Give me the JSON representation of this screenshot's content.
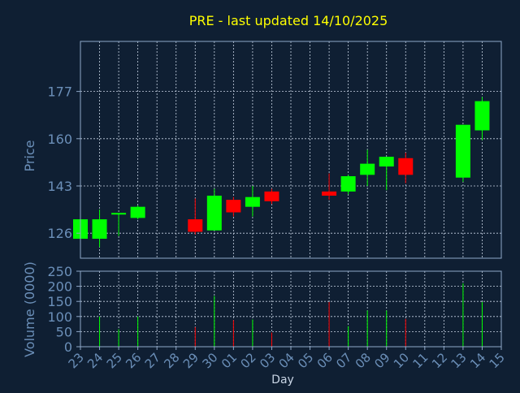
{
  "chart_data": {
    "type": "candlestick",
    "title": "PRE - last updated 14/10/2025",
    "xlabel": "Day",
    "x_tick_labels": [
      "23",
      "24",
      "25",
      "26",
      "27",
      "28",
      "29",
      "30",
      "01",
      "02",
      "03",
      "04",
      "05",
      "06",
      "07",
      "08",
      "09",
      "10",
      "11",
      "12",
      "13",
      "14",
      "15"
    ],
    "price_panel": {
      "ylabel": "Price",
      "ylim": [
        117,
        195
      ],
      "yticks": [
        126,
        143,
        160,
        177
      ],
      "candles": [
        {
          "x": 23,
          "open": 124.0,
          "high": 131.0,
          "low": 124.0,
          "close": 131.0
        },
        {
          "x": 24,
          "open": 124.0,
          "high": 134.5,
          "low": 121.0,
          "close": 131.0
        },
        {
          "x": 25,
          "open": 132.5,
          "high": 133.0,
          "low": 125.0,
          "close": 133.0
        },
        {
          "x": 26,
          "open": 131.5,
          "high": 136.0,
          "low": 131.0,
          "close": 135.5
        },
        {
          "x": 29,
          "open": 131.0,
          "high": 138.5,
          "low": 125.5,
          "close": 126.5
        },
        {
          "x": 30,
          "open": 127.0,
          "high": 142.0,
          "low": 127.0,
          "close": 139.5
        },
        {
          "x": 31,
          "open": 138.0,
          "high": 139.0,
          "low": 132.0,
          "close": 133.5
        },
        {
          "x": 32,
          "open": 135.5,
          "high": 143.0,
          "low": 132.0,
          "close": 139.0
        },
        {
          "x": 33,
          "open": 141.0,
          "high": 142.0,
          "low": 136.5,
          "close": 137.5
        },
        {
          "x": 36,
          "open": 141.0,
          "high": 147.5,
          "low": 138.0,
          "close": 139.5
        },
        {
          "x": 37,
          "open": 141.0,
          "high": 147.0,
          "low": 140.0,
          "close": 146.5
        },
        {
          "x": 38,
          "open": 147.0,
          "high": 156.0,
          "low": 143.0,
          "close": 151.0
        },
        {
          "x": 39,
          "open": 150.0,
          "high": 153.0,
          "low": 141.5,
          "close": 153.5
        },
        {
          "x": 40,
          "open": 153.0,
          "high": 155.0,
          "low": 144.0,
          "close": 147.0
        },
        {
          "x": 43,
          "open": 146.0,
          "high": 165.0,
          "low": 144.5,
          "close": 165.0
        },
        {
          "x": 44,
          "open": 163.0,
          "high": 175.0,
          "low": 159.5,
          "close": 173.5
        }
      ]
    },
    "volume_panel": {
      "ylabel": "Volume (0000)",
      "ylim": [
        0,
        250
      ],
      "yticks": [
        0,
        50,
        100,
        150,
        200,
        250
      ],
      "bars": [
        {
          "x": 24,
          "value": 100,
          "direction": "up"
        },
        {
          "x": 25,
          "value": 58,
          "direction": "up"
        },
        {
          "x": 26,
          "value": 100,
          "direction": "up"
        },
        {
          "x": 29,
          "value": 65,
          "direction": "down"
        },
        {
          "x": 30,
          "value": 168,
          "direction": "up"
        },
        {
          "x": 31,
          "value": 88,
          "direction": "down"
        },
        {
          "x": 32,
          "value": 90,
          "direction": "up"
        },
        {
          "x": 33,
          "value": 47,
          "direction": "down"
        },
        {
          "x": 36,
          "value": 148,
          "direction": "down"
        },
        {
          "x": 37,
          "value": 68,
          "direction": "up"
        },
        {
          "x": 38,
          "value": 120,
          "direction": "up"
        },
        {
          "x": 39,
          "value": 120,
          "direction": "up"
        },
        {
          "x": 40,
          "value": 92,
          "direction": "down"
        },
        {
          "x": 43,
          "value": 210,
          "direction": "up"
        },
        {
          "x": 44,
          "value": 148,
          "direction": "up"
        }
      ]
    },
    "grid": true,
    "colors": {
      "background": "#0f1f33",
      "title": "#ffff00",
      "axis_text": "#6b8fb8",
      "frame": "#8fa8c8",
      "grid": "#c8d4e4",
      "up": "#00ff00",
      "down": "#ff0000"
    }
  }
}
